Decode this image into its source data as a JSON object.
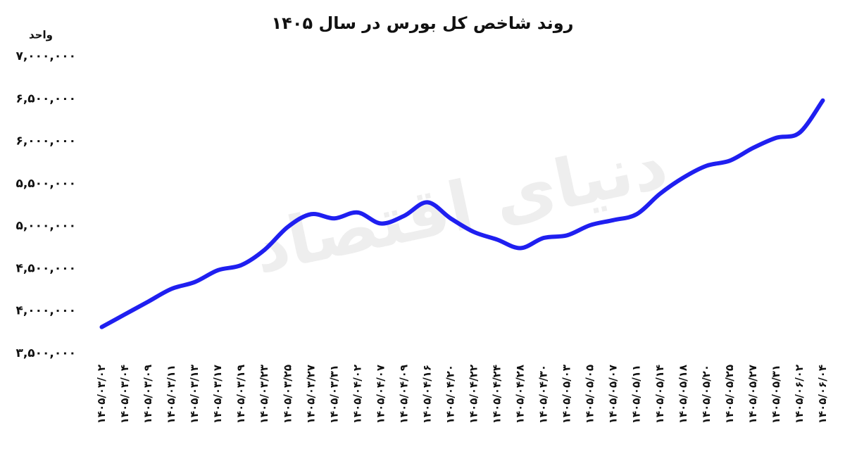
{
  "chart_data": {
    "type": "line",
    "title": "روند شاخص کل بورس در سال ۱۴۰۵",
    "y_label": "واحد",
    "watermark": "دنیای اقتصاد",
    "categories": [
      "۱۴۰۵/۰۳/۰۲",
      "۱۴۰۵/۰۳/۰۴",
      "۱۴۰۵/۰۳/۰۹",
      "۱۴۰۵/۰۳/۱۱",
      "۱۴۰۵/۰۳/۱۳",
      "۱۴۰۵/۰۳/۱۷",
      "۱۴۰۵/۰۳/۱۹",
      "۱۴۰۵/۰۳/۲۳",
      "۱۴۰۵/۰۳/۲۵",
      "۱۴۰۵/۰۳/۲۷",
      "۱۴۰۵/۰۳/۳۱",
      "۱۴۰۵/۰۴/۰۲",
      "۱۴۰۵/۰۴/۰۷",
      "۱۴۰۵/۰۴/۰۹",
      "۱۴۰۵/۰۴/۱۶",
      "۱۴۰۵/۰۴/۲۰",
      "۱۴۰۵/۰۴/۲۲",
      "۱۴۰۵/۰۴/۲۴",
      "۱۴۰۵/۰۴/۲۸",
      "۱۴۰۵/۰۴/۳۰",
      "۱۴۰۵/۰۵/۰۳",
      "۱۴۰۵/۰۵/۰۵",
      "۱۴۰۵/۰۵/۰۷",
      "۱۴۰۵/۰۵/۱۱",
      "۱۴۰۵/۰۵/۱۴",
      "۱۴۰۵/۰۵/۱۸",
      "۱۴۰۵/۰۵/۲۰",
      "۱۴۰۵/۰۵/۲۵",
      "۱۴۰۵/۰۵/۲۷",
      "۱۴۰۵/۰۵/۳۱",
      "۱۴۰۵/۰۶/۰۲",
      "۱۴۰۵/۰۶/۰۴"
    ],
    "series": [
      {
        "name": "شاخص کل",
        "color": "#1f1ff0",
        "values": [
          3810000,
          3960000,
          4110000,
          4260000,
          4340000,
          4480000,
          4540000,
          4720000,
          4990000,
          5140000,
          5090000,
          5160000,
          5030000,
          5120000,
          5280000,
          5090000,
          4930000,
          4840000,
          4740000,
          4860000,
          4890000,
          5010000,
          5070000,
          5140000,
          5380000,
          5570000,
          5710000,
          5770000,
          5920000,
          6040000,
          6100000,
          6480000
        ]
      }
    ],
    "ylim": [
      3500000,
      7000000
    ],
    "yticks": [
      {
        "value": 3500000,
        "label": "۳,۵۰۰,۰۰۰"
      },
      {
        "value": 4000000,
        "label": "۴,۰۰۰,۰۰۰"
      },
      {
        "value": 4500000,
        "label": "۴,۵۰۰,۰۰۰"
      },
      {
        "value": 5000000,
        "label": "۵,۰۰۰,۰۰۰"
      },
      {
        "value": 5500000,
        "label": "۵,۵۰۰,۰۰۰"
      },
      {
        "value": 6000000,
        "label": "۶,۰۰۰,۰۰۰"
      },
      {
        "value": 6500000,
        "label": "۶,۵۰۰,۰۰۰"
      },
      {
        "value": 7000000,
        "label": "۷,۰۰۰,۰۰۰"
      }
    ],
    "grid": false
  }
}
